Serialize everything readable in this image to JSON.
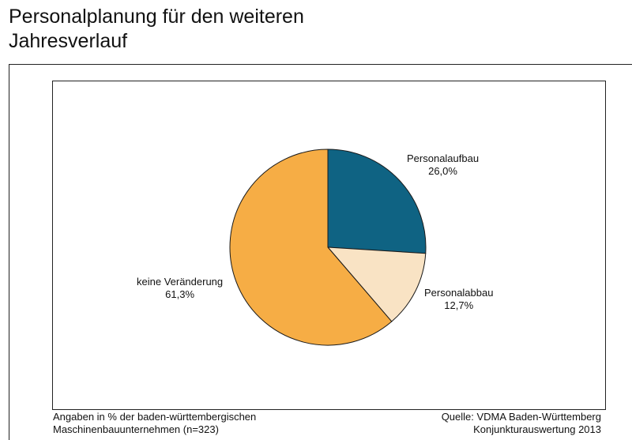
{
  "title_line1": "Personalplanung für den weiteren",
  "title_line2": "Jahresverlauf",
  "chart_data": {
    "type": "pie",
    "unit": "%",
    "slices": [
      {
        "label": "Personalaufbau",
        "value": 26.0,
        "value_label": "26,0%",
        "color": "#0f6383"
      },
      {
        "label": "Personalabbau",
        "value": 12.7,
        "value_label": "12,7%",
        "color": "#f9e3c4"
      },
      {
        "label": "keine Veränderung",
        "value": 61.3,
        "value_label": "61,3%",
        "color": "#f6ad45"
      }
    ],
    "start": "12 o'clock",
    "direction": "clockwise"
  },
  "footer": {
    "left_line1": "Angaben in % der baden-württembergischen",
    "left_line2": "Maschinenbauunternehmen (n=323)",
    "right_line1": "Quelle: VDMA Baden-Württemberg",
    "right_line2": "Konjunkturauswertung 2013"
  }
}
